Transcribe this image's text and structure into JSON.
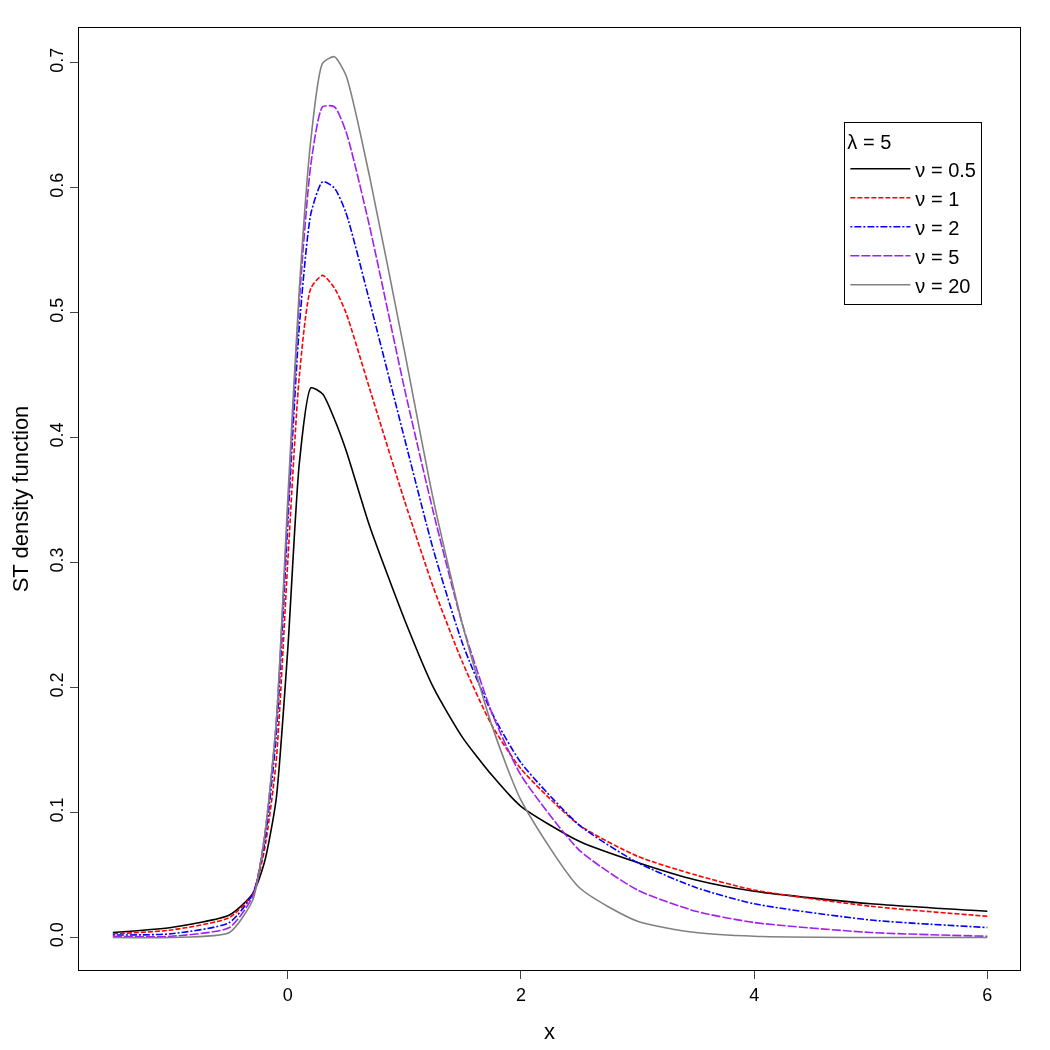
{
  "chart_data": {
    "type": "line",
    "xlabel": "x",
    "ylabel": "ST density function",
    "legend_title": "λ = 5",
    "x": [
      -1.5,
      -1,
      -0.5,
      -0.3,
      -0.2,
      -0.1,
      0,
      0.1,
      0.2,
      0.3,
      0.4,
      0.5,
      0.7,
      1,
      1.25,
      1.5,
      1.75,
      2,
      2.5,
      3,
      3.5,
      4,
      5,
      6
    ],
    "xlim": [
      -1.79,
      6.28
    ],
    "xticks": [
      0,
      2,
      4,
      6
    ],
    "ylim": [
      -0.026,
      0.728
    ],
    "yticks": [
      {
        "value": 0,
        "label": "0.0"
      },
      0.1,
      0.2,
      0.3,
      0.4,
      0.5,
      0.6,
      0.7
    ],
    "grid": false,
    "legend": "top right",
    "marker": "none",
    "series": [
      {
        "name": "ν = 0.5",
        "color": "#000000",
        "line_style": "solid",
        "values": [
          0.004,
          0.008,
          0.018,
          0.035,
          0.06,
          0.11,
          0.23,
          0.38,
          0.44,
          0.435,
          0.415,
          0.39,
          0.33,
          0.255,
          0.2,
          0.16,
          0.13,
          0.105,
          0.077,
          0.06,
          0.046,
          0.037,
          0.027,
          0.021
        ]
      },
      {
        "name": "ν = 1",
        "color": "#ff0000",
        "line_style": "dashed",
        "values": [
          0.003,
          0.006,
          0.016,
          0.035,
          0.07,
          0.14,
          0.3,
          0.45,
          0.52,
          0.53,
          0.52,
          0.5,
          0.44,
          0.35,
          0.28,
          0.22,
          0.17,
          0.135,
          0.09,
          0.065,
          0.05,
          0.038,
          0.025,
          0.017
        ]
      },
      {
        "name": "ν = 2",
        "color": "#0000ff",
        "line_style": "dashdot",
        "values": [
          0.002,
          0.003,
          0.012,
          0.035,
          0.075,
          0.16,
          0.33,
          0.49,
          0.58,
          0.605,
          0.6,
          0.58,
          0.51,
          0.4,
          0.31,
          0.235,
          0.18,
          0.14,
          0.09,
          0.06,
          0.04,
          0.027,
          0.014,
          0.008
        ]
      },
      {
        "name": "ν = 5",
        "color": "#a020f0",
        "line_style": "longdash",
        "values": [
          0.001,
          0.001,
          0.008,
          0.033,
          0.08,
          0.17,
          0.34,
          0.51,
          0.62,
          0.665,
          0.665,
          0.645,
          0.57,
          0.44,
          0.34,
          0.25,
          0.18,
          0.13,
          0.07,
          0.038,
          0.021,
          0.012,
          0.004,
          0.001
        ]
      },
      {
        "name": "ν = 20",
        "color": "#808080",
        "line_style": "solid",
        "values": [
          0,
          0,
          0.004,
          0.03,
          0.08,
          0.17,
          0.35,
          0.52,
          0.64,
          0.7,
          0.705,
          0.69,
          0.61,
          0.47,
          0.35,
          0.25,
          0.17,
          0.11,
          0.04,
          0.013,
          0.004,
          0.001,
          0,
          0
        ]
      }
    ]
  }
}
